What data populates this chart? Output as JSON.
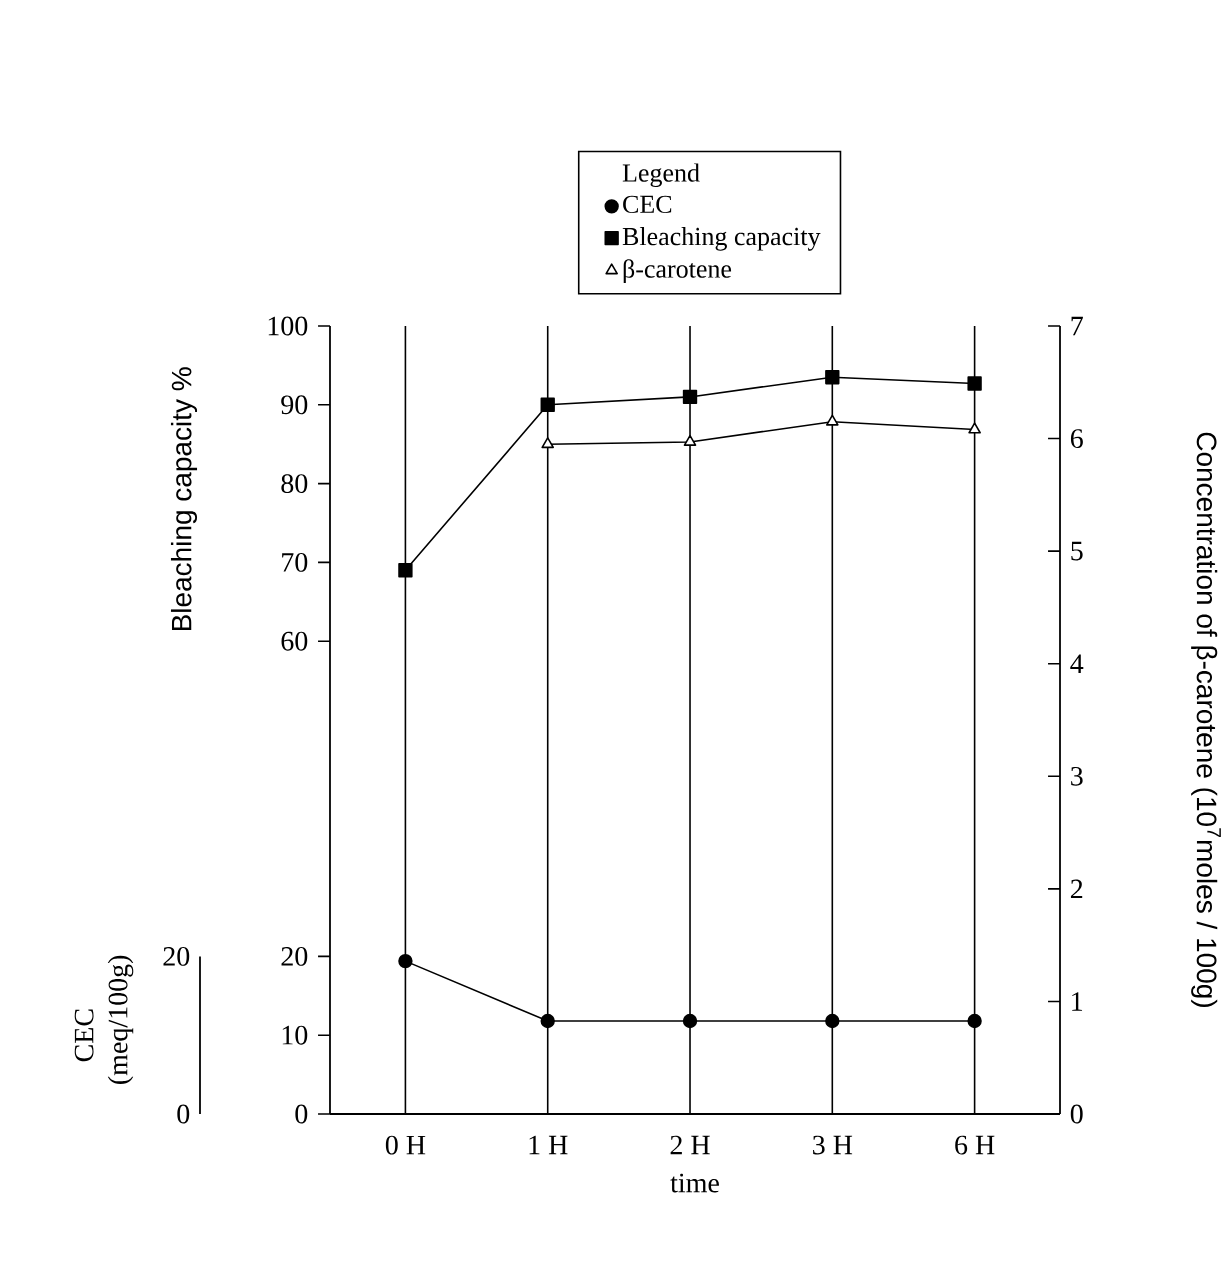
{
  "chart_data": {
    "type": "line",
    "categories": [
      "0 H",
      "1 H",
      "2 H",
      "3 H",
      "6 H"
    ],
    "xlabel": "time",
    "ylabel": "Bleaching capacity %",
    "y2label": "Concentration of β-carotene (10$^{7}$moles / 100g)",
    "y3label": "CEC (meq/100g)",
    "legend_title": "Legend",
    "legend": "top",
    "ylim": [
      0,
      100
    ],
    "yticks": [
      0,
      10,
      20,
      60,
      70,
      80,
      90,
      100
    ],
    "y2lim": [
      0,
      7
    ],
    "y2ticks": [
      0,
      1,
      2,
      3,
      4,
      5,
      6,
      7
    ],
    "y3lim": [
      0,
      20
    ],
    "y3ticks": [
      0,
      20
    ],
    "grid": "x",
    "series": [
      {
        "name": "CEC",
        "color": "#000000",
        "marker": "circle",
        "axis": "y3",
        "values": [
          19.4,
          11.8,
          11.8,
          11.8,
          11.8
        ]
      },
      {
        "name": "Bleaching capacity",
        "color": "#000000",
        "marker": "square",
        "values": [
          69,
          90,
          91,
          93.5,
          92.7
        ]
      },
      {
        "name": "β-carotene",
        "color": "#000000",
        "marker": "triangle",
        "axis": "y2",
        "values": [
          null,
          5.95,
          5.97,
          6.15,
          6.08
        ]
      }
    ]
  }
}
